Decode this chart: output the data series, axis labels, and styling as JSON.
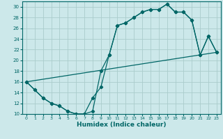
{
  "xlabel": "Humidex (Indice chaleur)",
  "bg_color": "#cce8ea",
  "grid_color": "#aacccc",
  "line_color": "#006666",
  "ylim": [
    10,
    31
  ],
  "xlim": [
    -0.5,
    23.5
  ],
  "yticks": [
    10,
    12,
    14,
    16,
    18,
    20,
    22,
    24,
    26,
    28,
    30
  ],
  "xticks": [
    0,
    1,
    2,
    3,
    4,
    5,
    6,
    7,
    8,
    9,
    10,
    11,
    12,
    13,
    14,
    15,
    16,
    17,
    18,
    19,
    20,
    21,
    22,
    23
  ],
  "line1_x": [
    0,
    1,
    2,
    3,
    4,
    5,
    6,
    7,
    8,
    9,
    10,
    11,
    12,
    13,
    14,
    15,
    16,
    17,
    18,
    19,
    20,
    21,
    22,
    23
  ],
  "line1_y": [
    16,
    14.5,
    13,
    12,
    11.5,
    10.5,
    10,
    10,
    10.5,
    18,
    21,
    26.5,
    27,
    28,
    29,
    29.5,
    29.5,
    30.5,
    29,
    29,
    27.5,
    21,
    24.5,
    21.5
  ],
  "line2_x": [
    0,
    1,
    2,
    3,
    4,
    5,
    6,
    7,
    8,
    9,
    10,
    11,
    12,
    13,
    14,
    15,
    16,
    17,
    18,
    19,
    20,
    21,
    22,
    23
  ],
  "line2_y": [
    16,
    14.5,
    13,
    12,
    11.5,
    10.5,
    10,
    10,
    13,
    15,
    21,
    26.5,
    27,
    28,
    29,
    29.5,
    29.5,
    30.5,
    29,
    29,
    27.5,
    21,
    24.5,
    21.5
  ],
  "line3_x": [
    0,
    23
  ],
  "line3_y": [
    16,
    21.5
  ]
}
